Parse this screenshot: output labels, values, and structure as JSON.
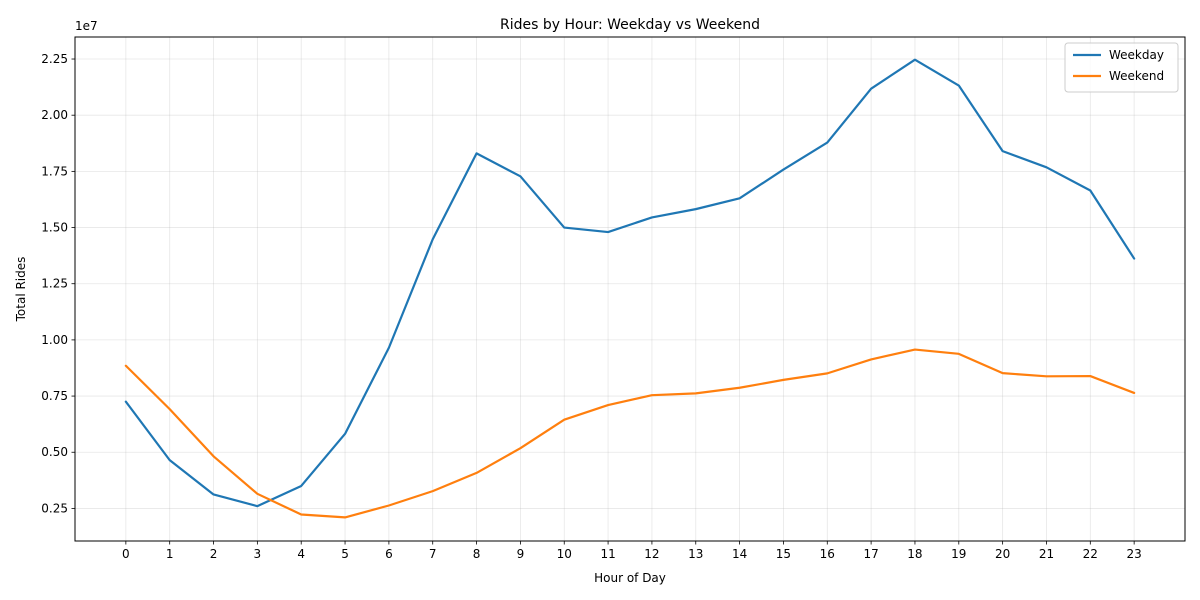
{
  "chart_data": {
    "type": "line",
    "title": "Rides by Hour: Weekday vs Weekend",
    "xlabel": "Hour of Day",
    "ylabel": "Total Rides",
    "y_offset_label": "1e7",
    "x": [
      0,
      1,
      2,
      3,
      4,
      5,
      6,
      7,
      8,
      9,
      10,
      11,
      12,
      13,
      14,
      15,
      16,
      17,
      18,
      19,
      20,
      21,
      22,
      23
    ],
    "x_tick_labels": [
      "0",
      "1",
      "2",
      "3",
      "4",
      "5",
      "6",
      "7",
      "8",
      "9",
      "10",
      "11",
      "12",
      "13",
      "14",
      "15",
      "16",
      "17",
      "18",
      "19",
      "20",
      "21",
      "22",
      "23"
    ],
    "y_ticks": [
      2500000,
      5000000,
      7500000,
      10000000,
      12500000,
      15000000,
      17500000,
      20000000,
      22500000
    ],
    "y_tick_labels": [
      "0.25",
      "0.50",
      "0.75",
      "1.00",
      "1.25",
      "1.50",
      "1.75",
      "2.00",
      "2.25"
    ],
    "ylim": [
      1050000,
      23480000
    ],
    "grid": true,
    "legend_position": "top-right",
    "series": [
      {
        "name": "Weekday",
        "color": "#1f77b4",
        "values": [
          7250000,
          4650000,
          3120000,
          2600000,
          3500000,
          5820000,
          9650000,
          14480000,
          18300000,
          17280000,
          15000000,
          14800000,
          15450000,
          15820000,
          16300000,
          17580000,
          18780000,
          21180000,
          22470000,
          21320000,
          18400000,
          17680000,
          16650000,
          13620000
        ]
      },
      {
        "name": "Weekend",
        "color": "#ff7f0e",
        "values": [
          8850000,
          6920000,
          4820000,
          3150000,
          2230000,
          2100000,
          2630000,
          3270000,
          4080000,
          5180000,
          6450000,
          7100000,
          7540000,
          7620000,
          7870000,
          8220000,
          8510000,
          9130000,
          9570000,
          9380000,
          8520000,
          8380000,
          8390000,
          7640000
        ]
      }
    ]
  }
}
